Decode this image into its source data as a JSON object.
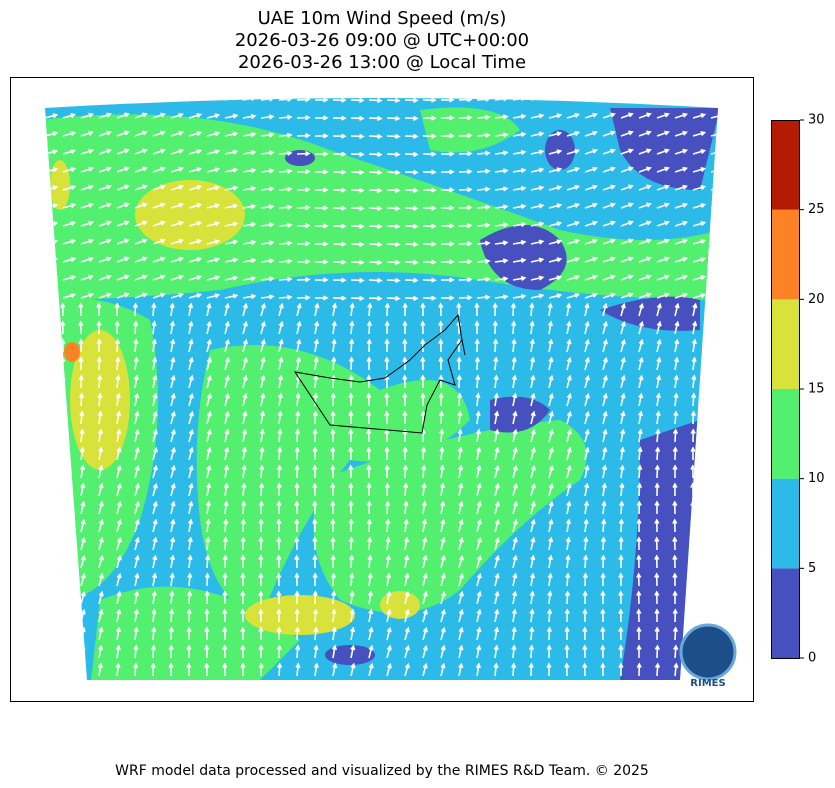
{
  "header": {
    "title": [
      "UAE 10m Wind Speed (m/s)",
      "2026-03-26 09:00 @ UTC+00:00",
      "2026-03-26 13:00 @ Local Time"
    ]
  },
  "colorbar": {
    "lim": [
      0,
      30
    ],
    "ticks": [
      0,
      5,
      10,
      15,
      20,
      25,
      30
    ],
    "colors": [
      "#4650be",
      "#2cbbe8",
      "#52f06e",
      "#d9e23b",
      "#fd8226",
      "#b31b02"
    ]
  },
  "logo": "RIMES",
  "footer": "WRF model data processed and visualized by the RIMES R&D Team. © 2025"
}
